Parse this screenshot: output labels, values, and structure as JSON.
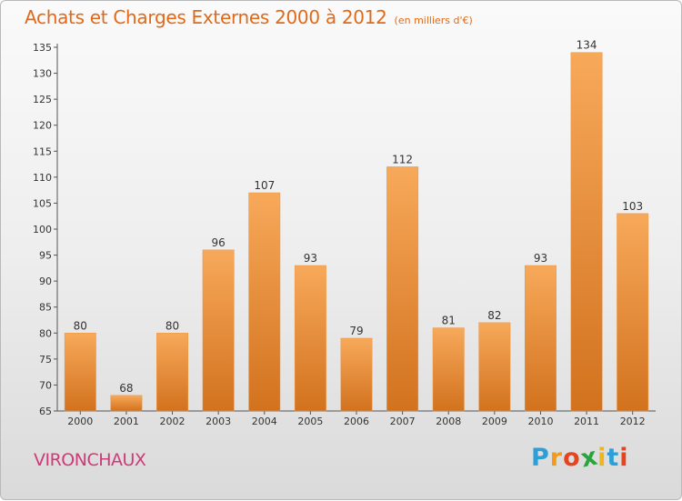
{
  "header": {
    "title": "Achats et Charges Externes 2000 à 2012",
    "subtitle": "(en milliers d'€)"
  },
  "footer": {
    "commune": "VIRONCHAUX",
    "logo_letters": [
      "P",
      "r",
      "o",
      "x",
      "i",
      "t",
      "i"
    ]
  },
  "colors": {
    "title": "#e06a1a",
    "commune": "#d03a78",
    "bar_top": "#f7a95a",
    "bar_bottom": "#d2721e",
    "logo": [
      "#2d9fd8",
      "#f39a1d",
      "#e5441f",
      "#2aa43c",
      "#f0b51d",
      "#2d9fd8",
      "#e5441f"
    ]
  },
  "chart_data": {
    "type": "bar",
    "categories": [
      "2000",
      "2001",
      "2002",
      "2003",
      "2004",
      "2005",
      "2006",
      "2007",
      "2008",
      "2009",
      "2010",
      "2011",
      "2012"
    ],
    "values": [
      80,
      68,
      80,
      96,
      107,
      93,
      79,
      112,
      81,
      82,
      93,
      134,
      103
    ],
    "ylim": [
      65,
      135
    ],
    "yticks": [
      65,
      70,
      75,
      80,
      85,
      90,
      95,
      100,
      105,
      110,
      115,
      120,
      125,
      130,
      135
    ],
    "grid": false,
    "xlabel": "",
    "ylabel": ""
  }
}
